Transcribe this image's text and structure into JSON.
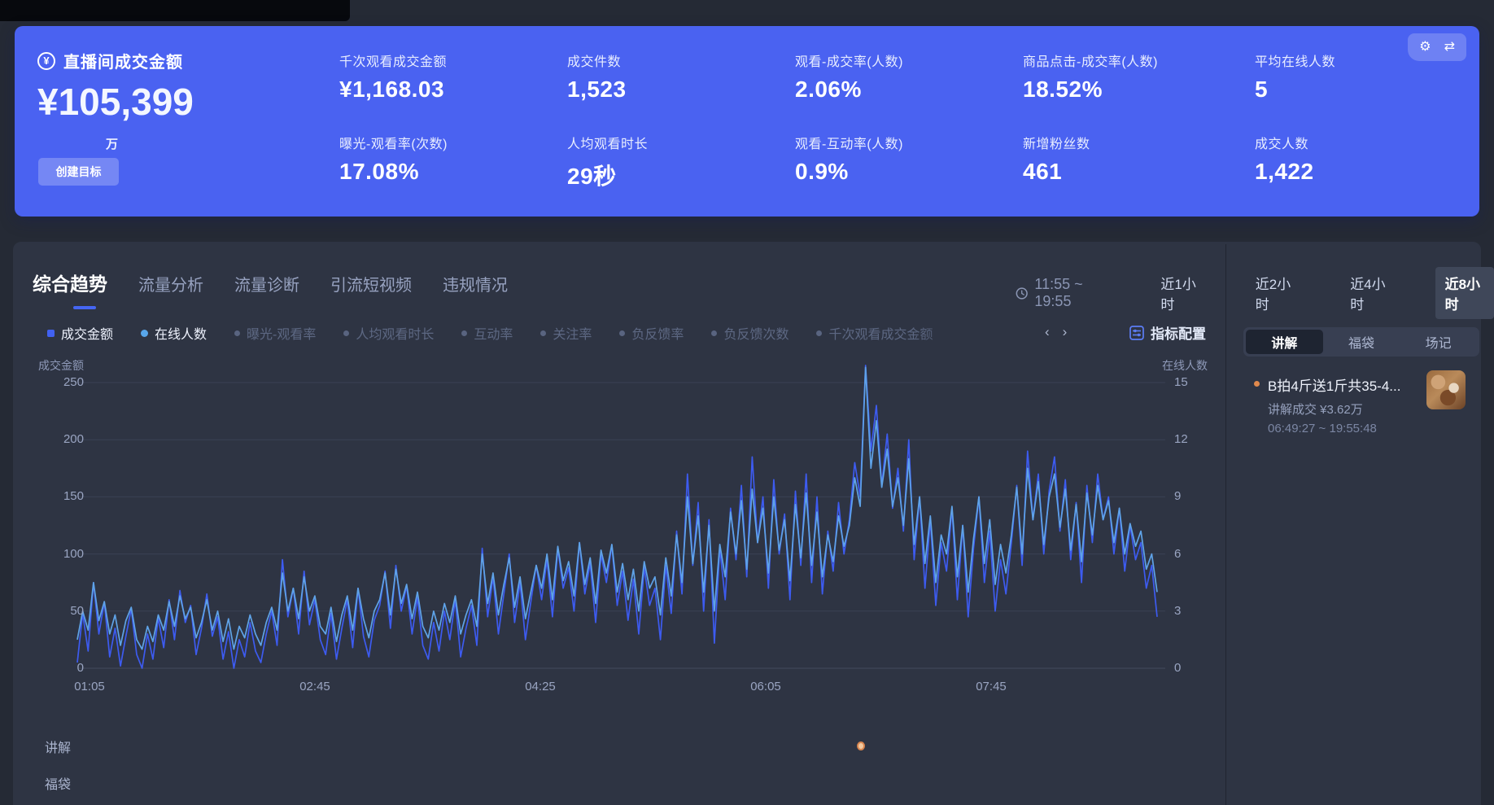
{
  "banner": {
    "title": "直播间成交金额",
    "main_value": "¥105,399",
    "main_unit": "万",
    "create_goal_label": "创建目标",
    "metrics": [
      {
        "label": "千次观看成交金额",
        "value": "¥1,168.03"
      },
      {
        "label": "曝光-观看率(次数)",
        "value": "17.08%"
      },
      {
        "label": "成交件数",
        "value": "1,523"
      },
      {
        "label": "人均观看时长",
        "value": "29秒"
      },
      {
        "label": "观看-成交率(人数)",
        "value": "2.06%"
      },
      {
        "label": "观看-互动率(人数)",
        "value": "0.9%"
      },
      {
        "label": "商品点击-成交率(人数)",
        "value": "18.52%"
      },
      {
        "label": "新增粉丝数",
        "value": "461"
      },
      {
        "label": "平均在线人数",
        "value": "5"
      },
      {
        "label": "成交人数",
        "value": "1,422"
      }
    ]
  },
  "tabs": {
    "items": [
      "综合趋势",
      "流量分析",
      "流量诊断",
      "引流短视频",
      "违规情况"
    ],
    "active_index": 0
  },
  "time_controls": {
    "range_text": "11:55 ~ 19:55",
    "options": [
      "近1小时",
      "近2小时",
      "近4小时",
      "近8小时"
    ],
    "active": "近8小时"
  },
  "legend_chips": [
    {
      "label": "成交金额",
      "active": true,
      "marker": "square",
      "color": "#4161f1"
    },
    {
      "label": "在线人数",
      "active": true,
      "marker": "circle",
      "color": "#58a6ea"
    },
    {
      "label": "曝光-观看率",
      "active": false,
      "marker": "dot",
      "color": "#596480"
    },
    {
      "label": "人均观看时长",
      "active": false,
      "marker": "dot",
      "color": "#596480"
    },
    {
      "label": "互动率",
      "active": false,
      "marker": "dot",
      "color": "#596480"
    },
    {
      "label": "关注率",
      "active": false,
      "marker": "dot",
      "color": "#596480"
    },
    {
      "label": "负反馈率",
      "active": false,
      "marker": "dot",
      "color": "#596480"
    },
    {
      "label": "负反馈次数",
      "active": false,
      "marker": "dot",
      "color": "#596480"
    },
    {
      "label": "千次观看成交金额",
      "active": false,
      "marker": "dot",
      "color": "#596480"
    }
  ],
  "metric_config_label": "指标配置",
  "chart_data": {
    "type": "line",
    "title": "",
    "left_axis": {
      "title": "成交金额",
      "ticks": [
        0,
        50,
        100,
        150,
        200,
        250
      ],
      "max": 250
    },
    "right_axis": {
      "title": "在线人数",
      "ticks": [
        0,
        3,
        6,
        9,
        12,
        15
      ],
      "max": 15
    },
    "x_ticks": [
      "01:05",
      "02:45",
      "04:25",
      "06:05",
      "07:45"
    ],
    "grid": true,
    "legend_position": "top",
    "series": [
      {
        "name": "成交金额",
        "axis": "left",
        "color": "#3d5bf0",
        "values": [
          5,
          48,
          15,
          75,
          30,
          58,
          10,
          35,
          2,
          28,
          52,
          12,
          0,
          30,
          8,
          44,
          18,
          60,
          25,
          68,
          40,
          55,
          12,
          35,
          65,
          28,
          45,
          8,
          32,
          0,
          25,
          10,
          40,
          15,
          5,
          30,
          50,
          20,
          95,
          45,
          70,
          30,
          85,
          38,
          60,
          25,
          12,
          48,
          8,
          35,
          60,
          18,
          70,
          28,
          10,
          42,
          55,
          85,
          35,
          90,
          50,
          72,
          30,
          62,
          20,
          8,
          40,
          15,
          50,
          25,
          60,
          10,
          35,
          55,
          20,
          105,
          45,
          80,
          30,
          65,
          100,
          40,
          75,
          25,
          58,
          90,
          60,
          95,
          45,
          105,
          70,
          88,
          50,
          110,
          65,
          92,
          40,
          100,
          75,
          108,
          55,
          85,
          42,
          78,
          30,
          88,
          55,
          70,
          25,
          90,
          48,
          120,
          65,
          170,
          90,
          145,
          50,
          130,
          22,
          105,
          60,
          140,
          95,
          160,
          80,
          185,
          110,
          150,
          70,
          165,
          100,
          135,
          60,
          155,
          90,
          170,
          75,
          150,
          65,
          120,
          85,
          145,
          100,
          130,
          180,
          150,
          265,
          190,
          230,
          160,
          205,
          140,
          175,
          120,
          200,
          95,
          150,
          70,
          130,
          55,
          110,
          85,
          140,
          60,
          125,
          45,
          105,
          150,
          75,
          120,
          50,
          95,
          65,
          110,
          160,
          90,
          190,
          130,
          170,
          100,
          155,
          185,
          120,
          165,
          95,
          145,
          75,
          160,
          110,
          170,
          130,
          150,
          100,
          140,
          85,
          125,
          95,
          110,
          70,
          90,
          45
        ]
      },
      {
        "name": "在线人数",
        "axis": "right",
        "color": "#5fa3e8",
        "values": [
          1.5,
          3,
          2,
          4.5,
          2.5,
          3.5,
          1.8,
          2.8,
          1.2,
          2.5,
          3.2,
          1.5,
          1,
          2.2,
          1.4,
          2.8,
          2,
          3.5,
          2.2,
          3.8,
          2.6,
          3.2,
          1.6,
          2.4,
          3.6,
          2,
          3,
          1.4,
          2.6,
          1,
          2.2,
          1.6,
          2.8,
          1.8,
          1.2,
          2.4,
          3.2,
          2,
          5,
          3,
          4.2,
          2.6,
          4.8,
          3,
          3.8,
          2.2,
          1.8,
          3.2,
          1.4,
          2.8,
          3.8,
          2,
          4.2,
          2.6,
          1.6,
          3,
          3.6,
          5,
          2.8,
          5.2,
          3.4,
          4.4,
          2.6,
          4,
          2.2,
          1.6,
          3,
          2,
          3.4,
          2.4,
          3.8,
          1.8,
          2.8,
          3.6,
          2.2,
          6,
          3.4,
          5,
          2.8,
          4.4,
          5.8,
          3.2,
          4.8,
          2.6,
          4,
          5.4,
          4.2,
          6,
          3.6,
          6.4,
          4.6,
          5.6,
          3.8,
          6.6,
          4.4,
          5.8,
          3.4,
          6.2,
          5,
          6.5,
          4,
          5.5,
          3.6,
          5.2,
          3,
          5.6,
          4.2,
          4.8,
          2.8,
          5.8,
          3.8,
          7,
          4.5,
          9,
          5.5,
          8,
          4,
          7.5,
          3,
          6.5,
          4.8,
          8.2,
          6,
          8.8,
          5.2,
          9.4,
          6.6,
          8.4,
          5,
          9,
          6.2,
          7.8,
          4.6,
          8.6,
          5.8,
          9.2,
          5.4,
          8.2,
          4.8,
          7,
          5.6,
          8,
          6.4,
          7.5,
          10,
          8.5,
          15.8,
          10.5,
          13,
          9.5,
          11.5,
          8.5,
          10,
          7.5,
          11,
          6.5,
          9,
          5.5,
          8,
          4.5,
          7,
          6,
          8.5,
          4.8,
          7.5,
          4,
          6.8,
          9,
          5.5,
          7.8,
          4.4,
          6.5,
          5,
          7,
          9.5,
          6,
          10.5,
          7.8,
          9.8,
          6.5,
          9,
          10.2,
          7.4,
          9.4,
          6.2,
          8.6,
          5.6,
          9.2,
          7,
          9.6,
          7.8,
          8.8,
          6.6,
          8.4,
          6,
          7.6,
          6.4,
          7.2,
          5.2,
          6,
          4
        ]
      }
    ]
  },
  "timeline_rows": [
    {
      "label": "讲解",
      "markers": [
        0.726
      ]
    },
    {
      "label": "福袋",
      "markers": []
    }
  ],
  "side_panel": {
    "tabs": [
      "讲解",
      "福袋",
      "场记"
    ],
    "active_tab": "讲解",
    "items": [
      {
        "title": "B拍4斤送1斤共35-4...",
        "subtitle": "讲解成交 ¥3.62万",
        "time": "06:49:27 ~ 19:55:48"
      }
    ]
  }
}
